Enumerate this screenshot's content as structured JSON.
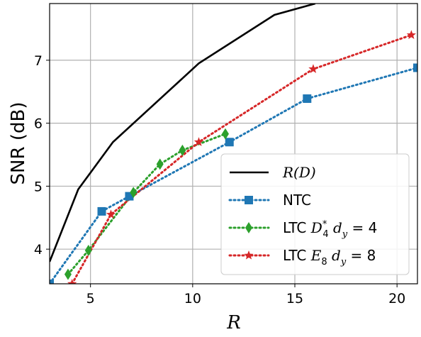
{
  "chart_data": {
    "type": "line",
    "xlabel": "R",
    "ylabel": "SNR (dB)",
    "xlim": [
      3.0,
      21.0
    ],
    "ylim": [
      3.45,
      7.9
    ],
    "xticks": [
      5,
      10,
      15,
      20
    ],
    "yticks": [
      4,
      5,
      6,
      7
    ],
    "grid": true,
    "legend_position": "bottom-right",
    "series": [
      {
        "name": "R(D)",
        "style": "solid",
        "color": "#000000",
        "marker": "none",
        "x": [
          3.0,
          4.4,
          6.1,
          10.3,
          14.0,
          16.0
        ],
        "y": [
          3.8,
          4.95,
          5.7,
          6.95,
          7.72,
          7.9
        ]
      },
      {
        "name": "NTC",
        "style": "dotted",
        "color": "#1f77b4",
        "marker": "square",
        "x": [
          3.0,
          5.55,
          6.9,
          11.8,
          15.6,
          21.0
        ],
        "y": [
          3.45,
          4.6,
          4.84,
          5.7,
          6.39,
          6.88
        ]
      },
      {
        "name": "LTC D4* dy = 4",
        "style": "dotted",
        "color": "#2ca02c",
        "marker": "diamond",
        "x": [
          3.9,
          4.9,
          7.1,
          8.4,
          9.5,
          11.6
        ],
        "y": [
          3.6,
          3.98,
          4.9,
          5.35,
          5.57,
          5.83
        ]
      },
      {
        "name": "LTC E8 dy = 8",
        "style": "dotted",
        "color": "#d62728",
        "marker": "star",
        "x": [
          4.1,
          6.0,
          10.3,
          15.9,
          20.7
        ],
        "y": [
          3.45,
          4.55,
          5.7,
          6.86,
          7.4
        ]
      }
    ]
  },
  "legend": {
    "items": [
      {
        "main": "",
        "math": "R(D)"
      },
      {
        "main": "NTC",
        "math": ""
      },
      {
        "main": "LTC ",
        "math": "D",
        "sub": "4",
        "sup": "*",
        "rest": " d",
        "rest_sub": "y",
        "tail": " = 4"
      },
      {
        "main": "LTC ",
        "math": "E",
        "sub": "8",
        "sup": "",
        "rest": " d",
        "rest_sub": "y",
        "tail": " = 8"
      }
    ]
  }
}
